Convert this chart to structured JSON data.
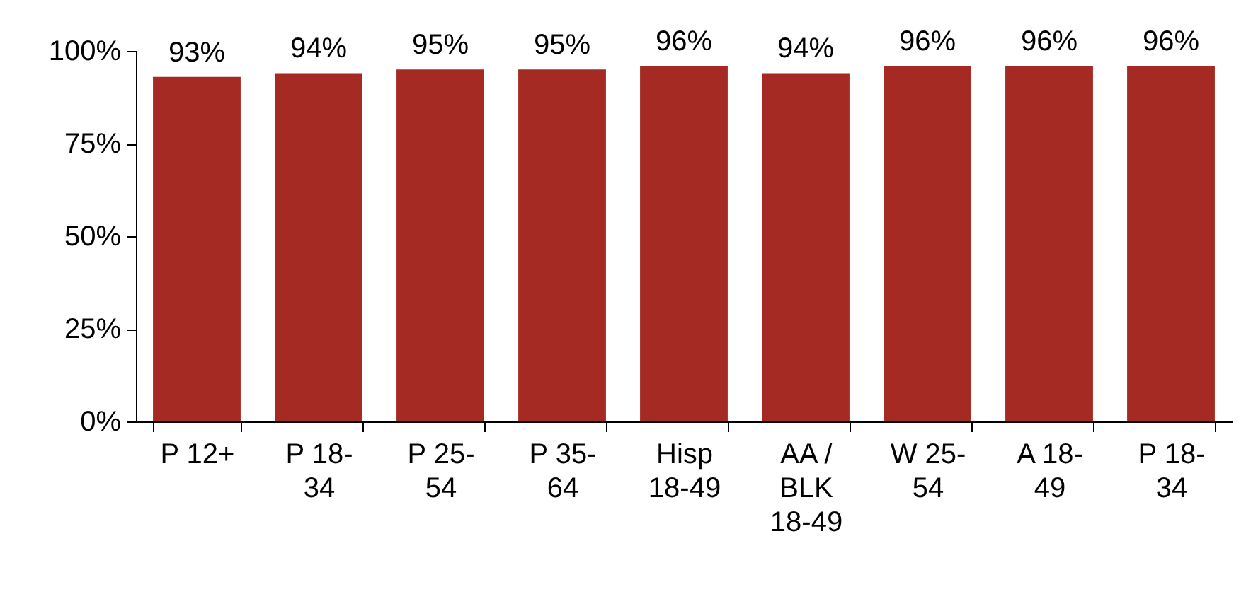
{
  "chart_data": {
    "type": "bar",
    "categories": [
      "P 12+",
      "P 18-34",
      "P 25-54",
      "P 35-64",
      "Hisp 18-49",
      "AA / BLK 18-49",
      "W 25-54",
      "A 18-49",
      "P 18-34"
    ],
    "values": [
      93,
      94,
      95,
      95,
      96,
      94,
      96,
      96,
      96
    ],
    "value_labels": [
      "93%",
      "94%",
      "95%",
      "95%",
      "96%",
      "94%",
      "96%",
      "96%",
      "96%"
    ],
    "color": "#a52a24",
    "ylim": [
      0,
      100
    ],
    "yticks": [
      {
        "value": 0,
        "label": "0%"
      },
      {
        "value": 25,
        "label": "25%"
      },
      {
        "value": 50,
        "label": "50%"
      },
      {
        "value": 75,
        "label": "75%"
      },
      {
        "value": 100,
        "label": "100%"
      }
    ],
    "grid": false
  }
}
